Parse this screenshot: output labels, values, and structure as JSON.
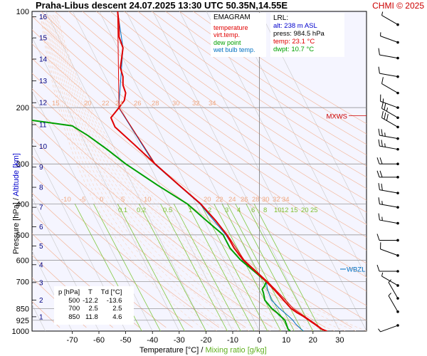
{
  "header": {
    "title": "Praha-Libus   descent   24.07.2025 13:30 UTC  50.35N,14.55E",
    "copyright": "CHMI © 2025"
  },
  "legend": {
    "title": "EMAGRAM",
    "items": [
      {
        "label": "temperature",
        "color": "#e00000"
      },
      {
        "label": "virt.temp.",
        "color": "#e00000"
      },
      {
        "label": "dew point",
        "color": "#00a000"
      },
      {
        "label": "wet bulb temp.",
        "color": "#0070c0"
      }
    ]
  },
  "lrl": {
    "title": "LRL:",
    "lines": [
      {
        "text": "alt: 238 m ASL",
        "color": "#0000cc"
      },
      {
        "text": "press: 984.5 hPa",
        "color": "#000000"
      },
      {
        "text": "temp: 23.1 °C",
        "color": "#e00000"
      },
      {
        "text": "dwpt: 10.7 °C",
        "color": "#00a000"
      }
    ]
  },
  "table": {
    "headers": [
      "p [hPa]",
      "T",
      "Td [°C]"
    ],
    "rows": [
      [
        "500",
        "-12.2",
        "-13.6"
      ],
      [
        "700",
        "2.5",
        "2.5"
      ],
      [
        "850",
        "11.8",
        "4.6"
      ]
    ]
  },
  "annotations": {
    "mxws": "MXWS",
    "wbzl": "WBZL"
  },
  "axes": {
    "ylabel_pressure": "Pressure [hPa]",
    "ylabel_sep": "  /  ",
    "ylabel_alt": "Altitude [km]",
    "xlabel_temp": "Temperature [°C]",
    "xlabel_sep": "  /  ",
    "xlabel_mix": "Mixing ratio [g/kg]"
  },
  "chart_data": {
    "type": "line",
    "title": "Praha-Libus descent 24.07.2025 13:30 UTC 50.35N,14.55E",
    "xlabel": "Temperature [°C] / Mixing ratio [g/kg]",
    "ylabel": "Pressure [hPa] / Altitude [km]",
    "y_scale": "log",
    "xlim": [
      -85,
      40
    ],
    "ylim": [
      1000,
      100
    ],
    "x_ticks": [
      -70,
      -60,
      -50,
      -40,
      -30,
      -20,
      -10,
      0,
      10,
      20,
      30
    ],
    "y_ticks": [
      100,
      200,
      300,
      400,
      500,
      600,
      700,
      850,
      925,
      1000
    ],
    "altitude_km_ticks": [
      1,
      2,
      3,
      4,
      5,
      6,
      7,
      8,
      9,
      10,
      11,
      12,
      13,
      14,
      15,
      16
    ],
    "mixing_ratio_labels": [
      "0.1",
      "0.2",
      "0.5",
      "1",
      "2",
      "3",
      "4",
      "6",
      "8",
      "10",
      "12",
      "15",
      "20",
      "25"
    ],
    "dry_adiabat_labels_upper": [
      "15",
      "20",
      "22",
      "24",
      "26",
      "28",
      "30",
      "32",
      "34"
    ],
    "moist_adiabat_labels": [
      "-10",
      "-5",
      "0",
      "5",
      "10",
      "20",
      "22",
      "24",
      "26",
      "28",
      "30",
      "32",
      "34"
    ],
    "grid": true,
    "legend": "top",
    "series": [
      {
        "name": "temperature",
        "color": "#e00000",
        "points": [
          [
            1000,
            25
          ],
          [
            985,
            23.1
          ],
          [
            950,
            20.5
          ],
          [
            925,
            18.5
          ],
          [
            900,
            16.5
          ],
          [
            875,
            14
          ],
          [
            850,
            11.8
          ],
          [
            800,
            9
          ],
          [
            750,
            6
          ],
          [
            700,
            2.5
          ],
          [
            650,
            -1.5
          ],
          [
            600,
            -6
          ],
          [
            550,
            -9.5
          ],
          [
            500,
            -12.2
          ],
          [
            450,
            -16.5
          ],
          [
            400,
            -22
          ],
          [
            350,
            -30
          ],
          [
            300,
            -39
          ],
          [
            260,
            -47
          ],
          [
            230,
            -54
          ],
          [
            215,
            -55.5
          ],
          [
            200,
            -52.5
          ],
          [
            190,
            -50.5
          ],
          [
            180,
            -50
          ],
          [
            170,
            -51
          ],
          [
            160,
            -51
          ],
          [
            150,
            -52
          ],
          [
            140,
            -51.5
          ],
          [
            130,
            -51
          ],
          [
            120,
            -52.5
          ],
          [
            110,
            -52.5
          ],
          [
            100,
            -53
          ]
        ]
      },
      {
        "name": "virt.temp.",
        "color": "#e00000",
        "points": [
          [
            1000,
            25.4
          ],
          [
            985,
            23.5
          ],
          [
            950,
            21
          ],
          [
            925,
            19
          ],
          [
            900,
            17
          ],
          [
            850,
            12.6
          ],
          [
            800,
            9.8
          ],
          [
            700,
            3
          ],
          [
            600,
            -5.7
          ],
          [
            500,
            -12
          ],
          [
            400,
            -21.9
          ],
          [
            300,
            -39
          ],
          [
            200,
            -52.5
          ],
          [
            100,
            -53
          ]
        ]
      },
      {
        "name": "dew point",
        "color": "#00a000",
        "points": [
          [
            1000,
            11.5
          ],
          [
            985,
            10.7
          ],
          [
            950,
            10
          ],
          [
            925,
            9.5
          ],
          [
            900,
            8
          ],
          [
            875,
            6.5
          ],
          [
            850,
            4.6
          ],
          [
            800,
            2
          ],
          [
            760,
            1.5
          ],
          [
            740,
            1
          ],
          [
            720,
            2
          ],
          [
            700,
            2.5
          ],
          [
            650,
            -2
          ],
          [
            600,
            -7
          ],
          [
            550,
            -11
          ],
          [
            500,
            -13.6
          ],
          [
            450,
            -20
          ],
          [
            400,
            -27
          ],
          [
            350,
            -38
          ],
          [
            300,
            -50
          ],
          [
            270,
            -57
          ],
          [
            245,
            -64
          ],
          [
            228,
            -70
          ],
          [
            222,
            -80
          ],
          [
            218,
            -87
          ]
        ]
      },
      {
        "name": "wet bulb temp.",
        "color": "#0070c0",
        "points": [
          [
            1000,
            16.5
          ],
          [
            985,
            15.5
          ],
          [
            950,
            13.5
          ],
          [
            925,
            12.5
          ],
          [
            900,
            11
          ],
          [
            850,
            7.5
          ],
          [
            800,
            4.5
          ],
          [
            740,
            3
          ],
          [
            700,
            2.5
          ],
          [
            600,
            -6.3
          ],
          [
            500,
            -12.6
          ],
          [
            400,
            -22.3
          ],
          [
            300,
            -39.3
          ],
          [
            200,
            -52.6
          ],
          [
            130,
            -51
          ],
          [
            100,
            -53
          ]
        ]
      }
    ],
    "wind_barbs": [
      {
        "p": 110,
        "dir": 300,
        "spd": 5
      },
      {
        "p": 125,
        "dir": 290,
        "spd": 5
      },
      {
        "p": 140,
        "dir": 280,
        "spd": 10
      },
      {
        "p": 160,
        "dir": 280,
        "spd": 10
      },
      {
        "p": 180,
        "dir": 300,
        "spd": 10
      },
      {
        "p": 200,
        "dir": 290,
        "spd": 15
      },
      {
        "p": 215,
        "dir": 300,
        "spd": 25
      },
      {
        "p": 230,
        "dir": 300,
        "spd": 30
      },
      {
        "p": 250,
        "dir": 280,
        "spd": 25
      },
      {
        "p": 270,
        "dir": 280,
        "spd": 25
      },
      {
        "p": 300,
        "dir": 270,
        "spd": 20
      },
      {
        "p": 330,
        "dir": 270,
        "spd": 20
      },
      {
        "p": 370,
        "dir": 280,
        "spd": 20
      },
      {
        "p": 410,
        "dir": 280,
        "spd": 15
      },
      {
        "p": 460,
        "dir": 280,
        "spd": 15
      },
      {
        "p": 520,
        "dir": 270,
        "spd": 10
      },
      {
        "p": 580,
        "dir": 290,
        "spd": 10
      },
      {
        "p": 650,
        "dir": 270,
        "spd": 10
      },
      {
        "p": 720,
        "dir": 300,
        "spd": 5
      },
      {
        "p": 790,
        "dir": 330,
        "spd": 5
      },
      {
        "p": 870,
        "dir": 330,
        "spd": 5
      },
      {
        "p": 960,
        "dir": 250,
        "spd": 5
      }
    ]
  },
  "colors": {
    "plot_bg": "#f5f5ff",
    "grid": "#888888",
    "isotherm": "#c8c8c8",
    "dry_adiabat": "#f4b090",
    "moist_adiabat": "#f8c8a8",
    "mixing_ratio": "#80c840",
    "mix_label": "#80c030",
    "adiabat_label": "#f0a880",
    "altitude_label": "#000080",
    "wind": "#000000"
  }
}
